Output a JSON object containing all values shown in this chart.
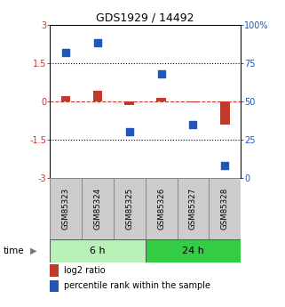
{
  "title": "GDS1929 / 14492",
  "samples": [
    "GSM85323",
    "GSM85324",
    "GSM85325",
    "GSM85326",
    "GSM85327",
    "GSM85328"
  ],
  "log2_ratio": [
    0.22,
    0.42,
    -0.15,
    0.15,
    -0.05,
    -0.9
  ],
  "percentile_rank": [
    82,
    88,
    30,
    68,
    35,
    8
  ],
  "ylim_left": [
    -3,
    3
  ],
  "ylim_right": [
    0,
    100
  ],
  "yticks_left": [
    -3,
    -1.5,
    0,
    1.5,
    3
  ],
  "ytick_labels_left": [
    "-3",
    "-1.5",
    "0",
    "1.5",
    "3"
  ],
  "yticks_right": [
    0,
    25,
    50,
    75,
    100
  ],
  "ytick_labels_right": [
    "0",
    "25",
    "50",
    "75",
    "100%"
  ],
  "hlines_dotted": [
    1.5,
    -1.5
  ],
  "hline_dashed_color": "#c0392b",
  "bar_color": "#c0392b",
  "square_color": "#2155b8",
  "group_labels": [
    "6 h",
    "24 h"
  ],
  "group_ranges": [
    [
      0,
      3
    ],
    [
      3,
      6
    ]
  ],
  "group_color_light": "#b8f0b8",
  "group_color_dark": "#33cc44",
  "label_log2": "log2 ratio",
  "label_pct": "percentile rank within the sample",
  "time_label": "time",
  "sample_box_color": "#cccccc",
  "sample_box_edge": "#888888",
  "bar_width": 0.3,
  "sq_size": 40
}
